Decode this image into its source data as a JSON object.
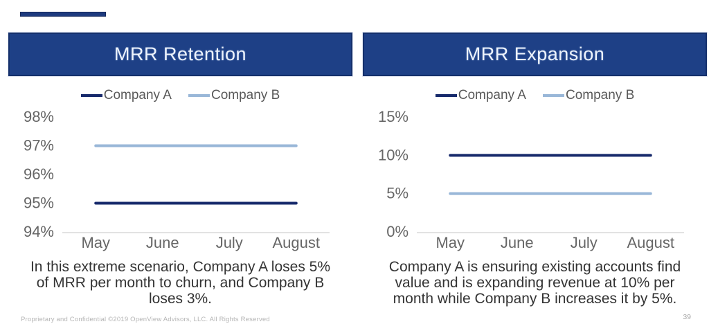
{
  "slide": {
    "accent_color": "#1d3a7e",
    "header_bar_color": "#1e4086",
    "footer": "Proprietary and Confidential ©2019 OpenView Advisors, LLC. All Rights Reserved",
    "page_number": "39"
  },
  "panels": [
    {
      "title": "MRR Retention",
      "caption_lines": [
        "In this extreme scenario, Company A loses 5%",
        "of MRR per month to churn, and Company B",
        "loses 3%."
      ]
    },
    {
      "title": "MRR Expansion",
      "caption_lines": [
        "Company A is ensuring existing accounts find",
        "value and is expanding revenue at 10% per",
        "month while Company B increases it by 5%."
      ]
    }
  ],
  "chart_data": [
    {
      "type": "line",
      "title": "MRR Retention",
      "categories": [
        "May",
        "June",
        "July",
        "August"
      ],
      "series": [
        {
          "name": "Company A",
          "values": [
            95,
            95,
            95,
            95
          ],
          "color": "#16296b"
        },
        {
          "name": "Company B",
          "values": [
            97,
            97,
            97,
            97
          ],
          "color": "#99b7d8"
        }
      ],
      "ylim": [
        94,
        98
      ],
      "yticks": [
        98,
        97,
        96,
        95,
        94
      ],
      "ytick_suffix": "%",
      "xlabel": "",
      "ylabel": "",
      "grid": false,
      "legend_position": "top",
      "axis_color": "#d9d9d9"
    },
    {
      "type": "line",
      "title": "MRR Expansion",
      "categories": [
        "May",
        "June",
        "July",
        "August"
      ],
      "series": [
        {
          "name": "Company A",
          "values": [
            10,
            10,
            10,
            10
          ],
          "color": "#16296b"
        },
        {
          "name": "Company B",
          "values": [
            5,
            5,
            5,
            5
          ],
          "color": "#99b7d8"
        }
      ],
      "ylim": [
        0,
        15
      ],
      "yticks": [
        15,
        10,
        5,
        0
      ],
      "ytick_suffix": "%",
      "xlabel": "",
      "ylabel": "",
      "grid": false,
      "legend_position": "top",
      "axis_color": "#d9d9d9"
    }
  ]
}
